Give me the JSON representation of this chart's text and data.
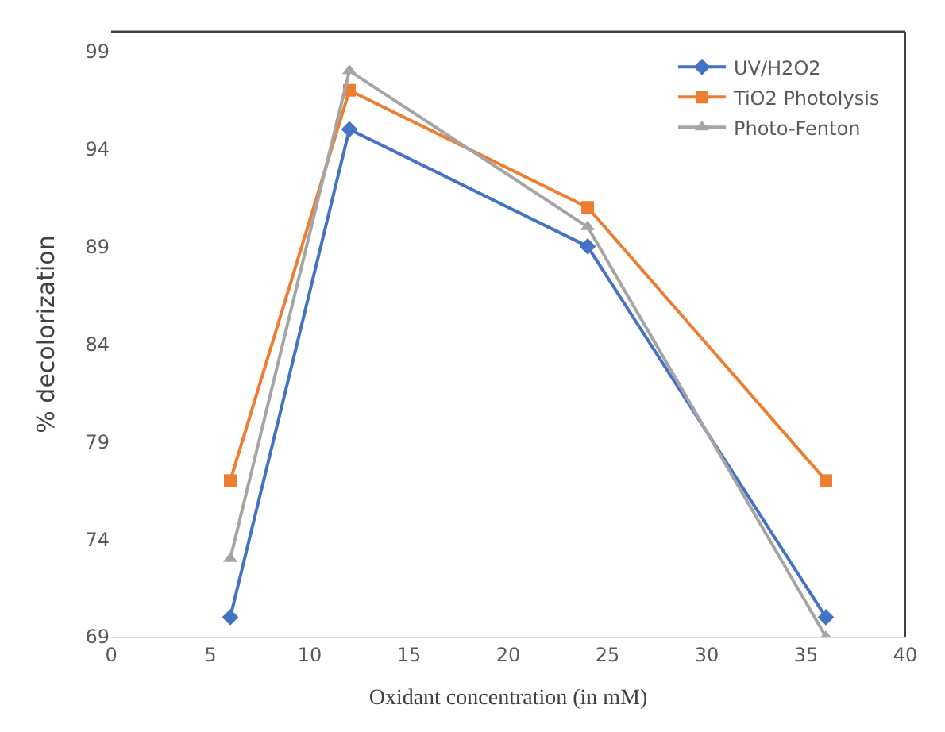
{
  "chart_data": {
    "type": "line",
    "xlabel": "Oxidant concentration (in mM)",
    "ylabel": "% decolorization",
    "x": [
      6,
      12,
      24,
      36
    ],
    "series": [
      {
        "name": "UV/H2O2",
        "color": "#4472c4",
        "values": [
          70,
          95,
          89,
          70
        ],
        "marker": "diamond"
      },
      {
        "name": "TiO2 Photolysis",
        "color": "#ed7d31",
        "values": [
          77,
          97,
          91,
          77
        ],
        "marker": "square"
      },
      {
        "name": "Photo-Fenton",
        "color": "#a5a5a5",
        "values": [
          73,
          98,
          90,
          69
        ],
        "marker": "triangle"
      }
    ],
    "xlim": [
      0,
      40
    ],
    "xticks": [
      0,
      5,
      10,
      15,
      20,
      25,
      30,
      35,
      40
    ],
    "ylim": [
      69,
      100
    ],
    "yticks": [
      69,
      74,
      79,
      84,
      89,
      94,
      99
    ],
    "legend": "top right",
    "line_style": "solid"
  }
}
